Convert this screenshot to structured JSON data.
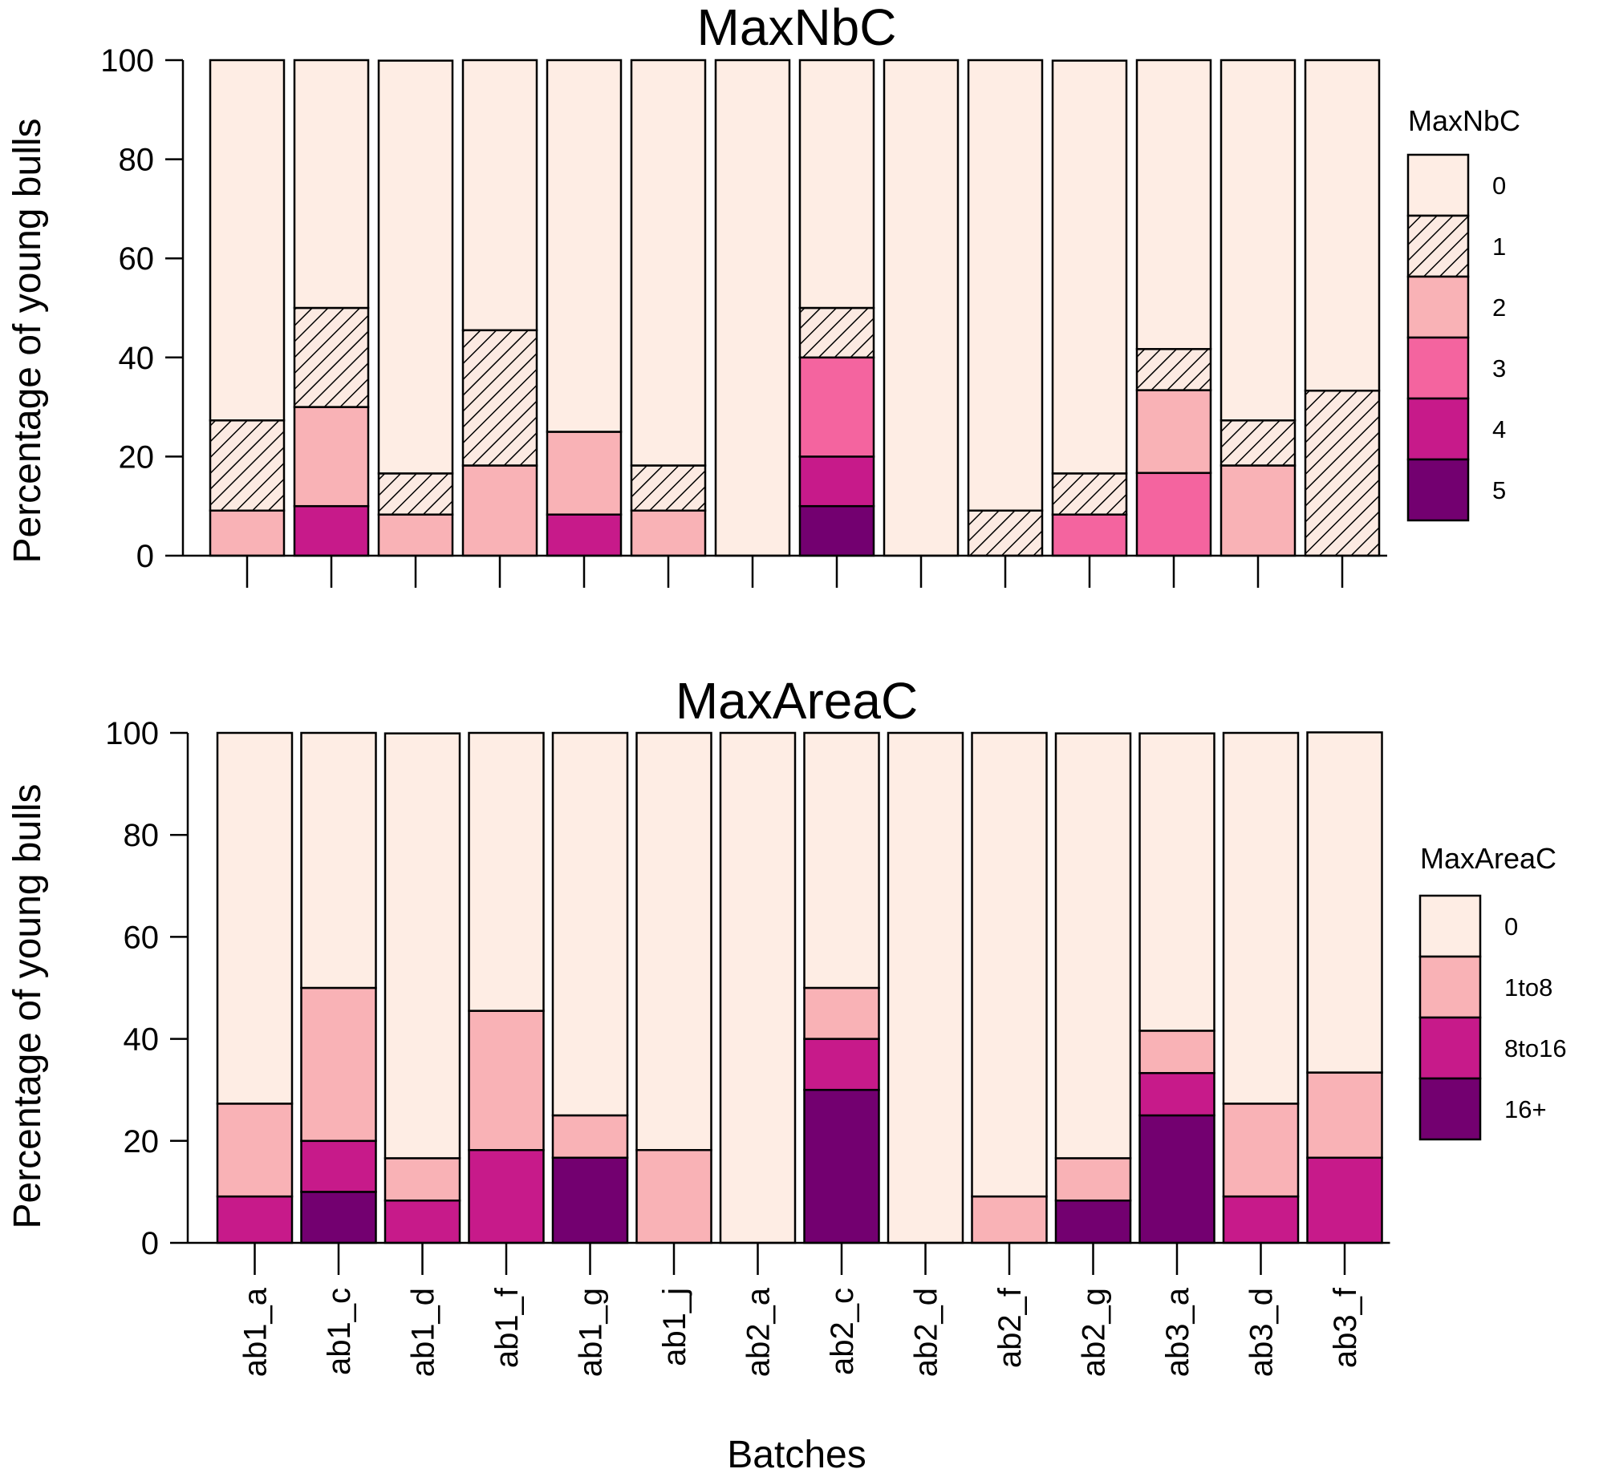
{
  "chart_data": [
    {
      "type": "bar",
      "stacked": true,
      "title": "MaxNbC",
      "ylabel": "Percentage of young bulls",
      "xlabel": "",
      "ylim": [
        0,
        100
      ],
      "yticks": [
        "0",
        "20",
        "40",
        "60",
        "80",
        "100"
      ],
      "categories": [
        "ab1_a",
        "ab1_c",
        "ab1_d",
        "ab1_f",
        "ab1_g",
        "ab1_j",
        "ab2_a",
        "ab2_c",
        "ab2_d",
        "ab2_f",
        "ab2_g",
        "ab3_a",
        "ab3_d",
        "ab3_f"
      ],
      "show_category_labels": false,
      "legend": {
        "title": "MaxNbC",
        "position": "right"
      },
      "series": [
        {
          "name": "5",
          "color": "#730070",
          "hatched": false,
          "values": [
            0,
            0,
            0,
            0,
            0,
            0,
            0,
            10,
            0,
            0,
            0,
            0,
            0,
            0
          ]
        },
        {
          "name": "4",
          "color": "#C71A8A",
          "hatched": false,
          "values": [
            0,
            10,
            0,
            0,
            8.3,
            0,
            0,
            10,
            0,
            0,
            0,
            0,
            0,
            0
          ]
        },
        {
          "name": "3",
          "color": "#F4649F",
          "hatched": false,
          "values": [
            0,
            0,
            0,
            0,
            0,
            0,
            0,
            20,
            0,
            0,
            8.3,
            16.7,
            0,
            0
          ]
        },
        {
          "name": "2",
          "color": "#F9B2B6",
          "hatched": false,
          "values": [
            9.1,
            20,
            8.3,
            18.2,
            16.7,
            9.1,
            0,
            0,
            0,
            0,
            0,
            16.7,
            18.2,
            0
          ]
        },
        {
          "name": "1",
          "color": "#FCEAE2",
          "hatched": true,
          "values": [
            18.2,
            20,
            8.3,
            27.3,
            0,
            9.1,
            0,
            10,
            0,
            9.1,
            8.3,
            8.3,
            9.1,
            33.3
          ]
        },
        {
          "name": "0",
          "color": "#FEEDE4",
          "hatched": false,
          "values": [
            72.7,
            50,
            83.3,
            54.5,
            75,
            81.8,
            100,
            50,
            100,
            90.9,
            83.3,
            58.3,
            72.7,
            66.7
          ]
        }
      ]
    },
    {
      "type": "bar",
      "stacked": true,
      "title": "MaxAreaC",
      "ylabel": "Percentage of young bulls",
      "xlabel": "Batches",
      "ylim": [
        0,
        100
      ],
      "yticks": [
        "0",
        "20",
        "40",
        "60",
        "80",
        "100"
      ],
      "categories": [
        "ab1_a",
        "ab1_c",
        "ab1_d",
        "ab1_f",
        "ab1_g",
        "ab1_j",
        "ab2_a",
        "ab2_c",
        "ab2_d",
        "ab2_f",
        "ab2_g",
        "ab3_a",
        "ab3_d",
        "ab3_f"
      ],
      "show_category_labels": true,
      "legend": {
        "title": "MaxAreaC",
        "position": "right"
      },
      "series": [
        {
          "name": "16+",
          "color": "#730070",
          "hatched": false,
          "values": [
            0,
            10,
            0,
            0,
            16.7,
            0,
            0,
            30,
            0,
            0,
            8.3,
            25,
            0,
            0
          ]
        },
        {
          "name": "8to16",
          "color": "#C71A8A",
          "hatched": false,
          "values": [
            9.1,
            10,
            8.3,
            18.2,
            0,
            0,
            0,
            10,
            0,
            0,
            0,
            8.3,
            9.1,
            16.7
          ]
        },
        {
          "name": "1to8",
          "color": "#F9B2B6",
          "hatched": false,
          "values": [
            18.2,
            30,
            8.3,
            27.3,
            8.3,
            18.2,
            0,
            10,
            0,
            9.1,
            8.3,
            8.3,
            18.2,
            16.7
          ]
        },
        {
          "name": "0",
          "color": "#FEEDE4",
          "hatched": false,
          "values": [
            72.7,
            50,
            83.3,
            54.5,
            75,
            81.8,
            100,
            50,
            100,
            90.9,
            83.3,
            58.3,
            72.7,
            66.7
          ]
        }
      ]
    }
  ]
}
